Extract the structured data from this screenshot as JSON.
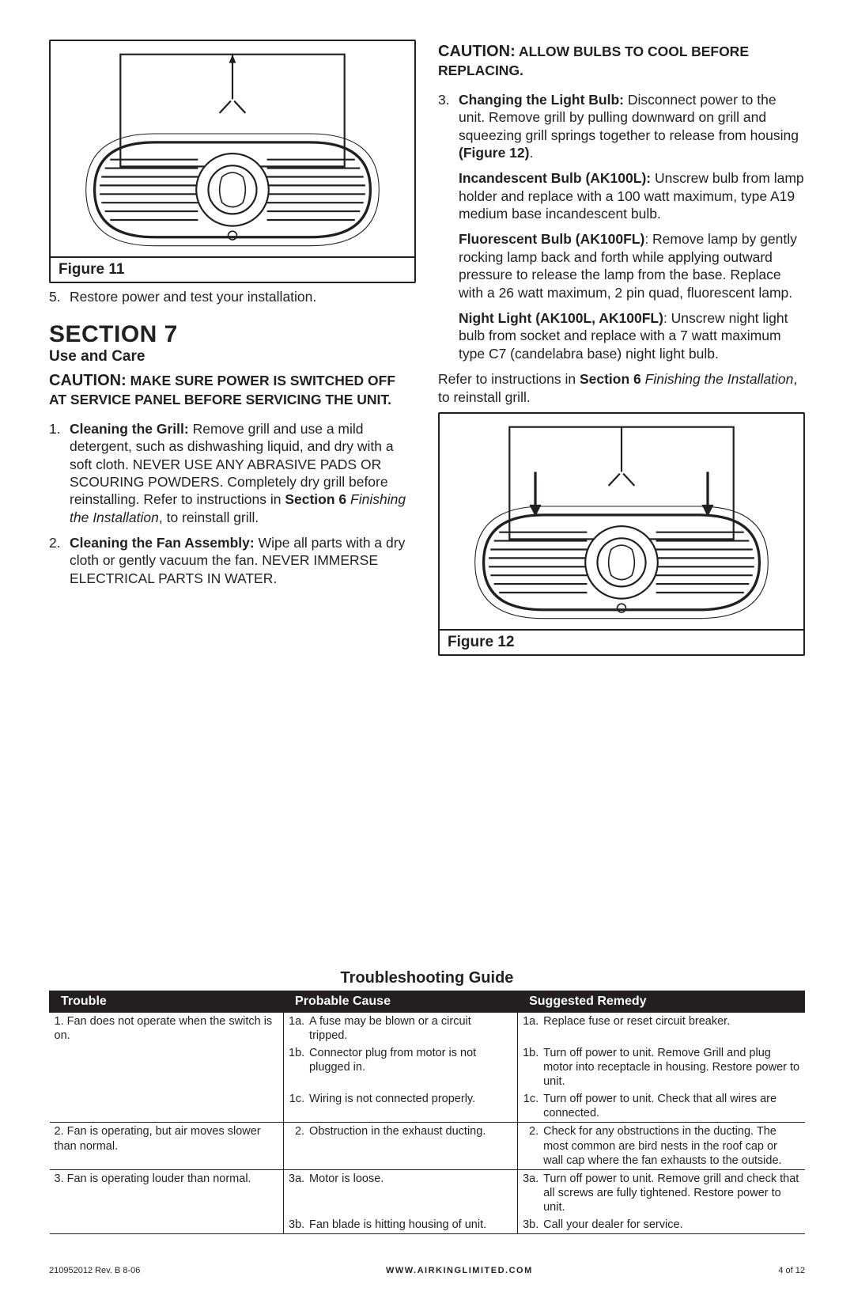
{
  "colors": {
    "text": "#231f20",
    "bg": "#ffffff",
    "tableHeaderBg": "#231f20",
    "tableHeaderText": "#ffffff"
  },
  "left": {
    "fig11Caption": "Figure 11",
    "step5Num": "5.",
    "step5Text": "Restore power and test your installation.",
    "sectionTitle": "SECTION 7",
    "useCare": "Use and Care",
    "cautionWord": "CAUTION:",
    "cautionText": " MAKE SURE POWER IS SWITCHED OFF AT SERVICE PANEL BEFORE SERVICING THE UNIT.",
    "item1": {
      "num": "1.",
      "lead": "Cleaning the Grill: ",
      "t1": "Remove grill and use a mild detergent, such as dishwashing liquid, and dry with a soft cloth. NEVER USE ANY ABRASIVE PADS OR SCOURING POWDERS. Completely dry grill before reinstalling. Refer to instructions in ",
      "secref": "Section 6",
      "italic": " Finishing the Installation",
      "tail": ", to reinstall grill."
    },
    "item2": {
      "num": "2.",
      "lead": "Cleaning the Fan Assembly: ",
      "text": "Wipe all parts with a dry cloth or gently vacuum the fan. NEVER IMMERSE ELECTRICAL PARTS IN WATER."
    }
  },
  "right": {
    "cautionWord": "CAUTION:",
    "cautionText": " ALLOW BULBS TO COOL BEFORE REPLACING.",
    "item3": {
      "num": "3.",
      "lead": "Changing the Light Bulb: ",
      "t1": "Disconnect power to the unit. Remove grill by pulling downward on grill and squeezing grill springs together to release from housing ",
      "figref": "(Figure 12)",
      "tail": "."
    },
    "inc": {
      "lead": "Incandescent Bulb (AK100L): ",
      "text": "Unscrew bulb from lamp holder and replace with a 100 watt maximum, type A19 medium base incandescent bulb."
    },
    "fluor": {
      "lead": "Fluorescent Bulb (AK100FL)",
      "text": ": Remove lamp by gently rocking lamp back and forth while applying outward pressure to release the lamp from the base. Replace with a 26 watt maximum, 2 pin quad, fluorescent lamp."
    },
    "night": {
      "lead": "Night Light (AK100L, AK100FL)",
      "text": ": Unscrew night light bulb from socket and replace with a 7 watt maximum type C7 (candelabra base) night light bulb."
    },
    "refer": {
      "t1": "Refer to instructions in ",
      "secref": "Section 6",
      "italic": " Finishing the Installation",
      "tail": ", to reinstall grill."
    },
    "fig12Caption": "Figure 12"
  },
  "troubleshooting": {
    "title": "Troubleshooting Guide",
    "headers": [
      "Trouble",
      "Probable Cause",
      "Suggested Remedy"
    ],
    "rows": [
      {
        "trouble": "1. Fan does not operate when the switch is on.",
        "causes": [
          {
            "n": "1a.",
            "t": "A fuse may be blown or a circuit tripped."
          },
          {
            "n": "1b.",
            "t": "Connector plug from motor is not plugged in."
          },
          {
            "n": "1c.",
            "t": "Wiring is not connected properly."
          }
        ],
        "remedies": [
          {
            "n": "1a.",
            "t": "Replace fuse or reset circuit breaker."
          },
          {
            "n": "1b.",
            "t": "Turn off power to unit. Remove Grill and plug motor into receptacle in housing. Restore power to unit."
          },
          {
            "n": "1c.",
            "t": "Turn off power to unit. Check that all wires are connected."
          }
        ]
      },
      {
        "trouble": "2. Fan is operating, but air moves slower than normal.",
        "causes": [
          {
            "n": "2.",
            "t": "Obstruction in the exhaust ducting."
          }
        ],
        "remedies": [
          {
            "n": "2.",
            "t": "Check for any obstructions in the ducting. The most common are bird nests in the roof cap or wall cap where the fan exhausts to the outside."
          }
        ]
      },
      {
        "trouble": "3. Fan is operating louder than normal.",
        "causes": [
          {
            "n": "3a.",
            "t": "Motor is loose."
          },
          {
            "n": "3b.",
            "t": "Fan blade is hitting housing of unit."
          }
        ],
        "remedies": [
          {
            "n": "3a.",
            "t": "Turn off power to unit. Remove grill and check that all screws are fully tightened. Restore power to unit."
          },
          {
            "n": "3b.",
            "t": "Call your dealer for service."
          }
        ]
      }
    ]
  },
  "footer": {
    "left": "210952012 Rev. B 8-06",
    "mid": "WWW.AIRKINGLIMITED.COM",
    "right": "4 of 12"
  }
}
